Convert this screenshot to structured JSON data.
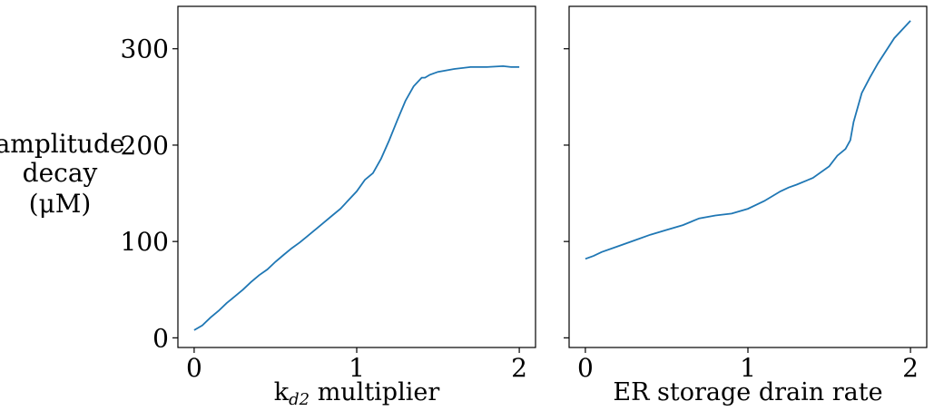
{
  "chart_data": [
    {
      "type": "line",
      "xlabel_main": "k",
      "xlabel_sub": "d2",
      "xlabel_rest": " multiplier",
      "ylabel_lines": [
        "amplitude",
        "decay",
        "(μM)"
      ],
      "xlim": [
        -0.1,
        2.1
      ],
      "ylim": [
        -10,
        344
      ],
      "xticks": [
        0,
        1,
        2
      ],
      "yticks": [
        0,
        100,
        200,
        300
      ],
      "color": "#1f77b4",
      "series": [
        {
          "x": [
            0.0,
            0.05,
            0.1,
            0.15,
            0.2,
            0.25,
            0.3,
            0.35,
            0.4,
            0.45,
            0.5,
            0.55,
            0.6,
            0.65,
            0.7,
            0.75,
            0.8,
            0.85,
            0.9,
            0.95,
            1.0,
            1.05,
            1.1,
            1.15,
            1.2,
            1.25,
            1.3,
            1.35,
            1.4,
            1.42,
            1.45,
            1.5,
            1.6,
            1.7,
            1.8,
            1.9,
            1.95,
            2.0
          ],
          "y": [
            8,
            13,
            21,
            28,
            36,
            43,
            50,
            58,
            65,
            71,
            79,
            86,
            93,
            99,
            106,
            113,
            120,
            127,
            134,
            143,
            152,
            164,
            171,
            186,
            205,
            226,
            246,
            261,
            270,
            270,
            273,
            276,
            279,
            281,
            281,
            282,
            281,
            281
          ]
        }
      ]
    },
    {
      "type": "line",
      "xlabel_main": "ER storage drain rate",
      "xlim": [
        -0.1,
        2.1
      ],
      "ylim": [
        -10,
        344
      ],
      "xticks": [
        0,
        1,
        2
      ],
      "color": "#1f77b4",
      "series": [
        {
          "x": [
            0.0,
            0.05,
            0.1,
            0.2,
            0.3,
            0.4,
            0.5,
            0.6,
            0.7,
            0.8,
            0.9,
            1.0,
            1.1,
            1.2,
            1.25,
            1.3,
            1.4,
            1.5,
            1.55,
            1.6,
            1.63,
            1.65,
            1.7,
            1.75,
            1.8,
            1.9,
            2.0
          ],
          "y": [
            82,
            85,
            89,
            95,
            101,
            107,
            112,
            117,
            124,
            127,
            129,
            134,
            142,
            152,
            156,
            159,
            166,
            178,
            189,
            196,
            205,
            224,
            254,
            270,
            285,
            311,
            329
          ]
        }
      ]
    }
  ]
}
